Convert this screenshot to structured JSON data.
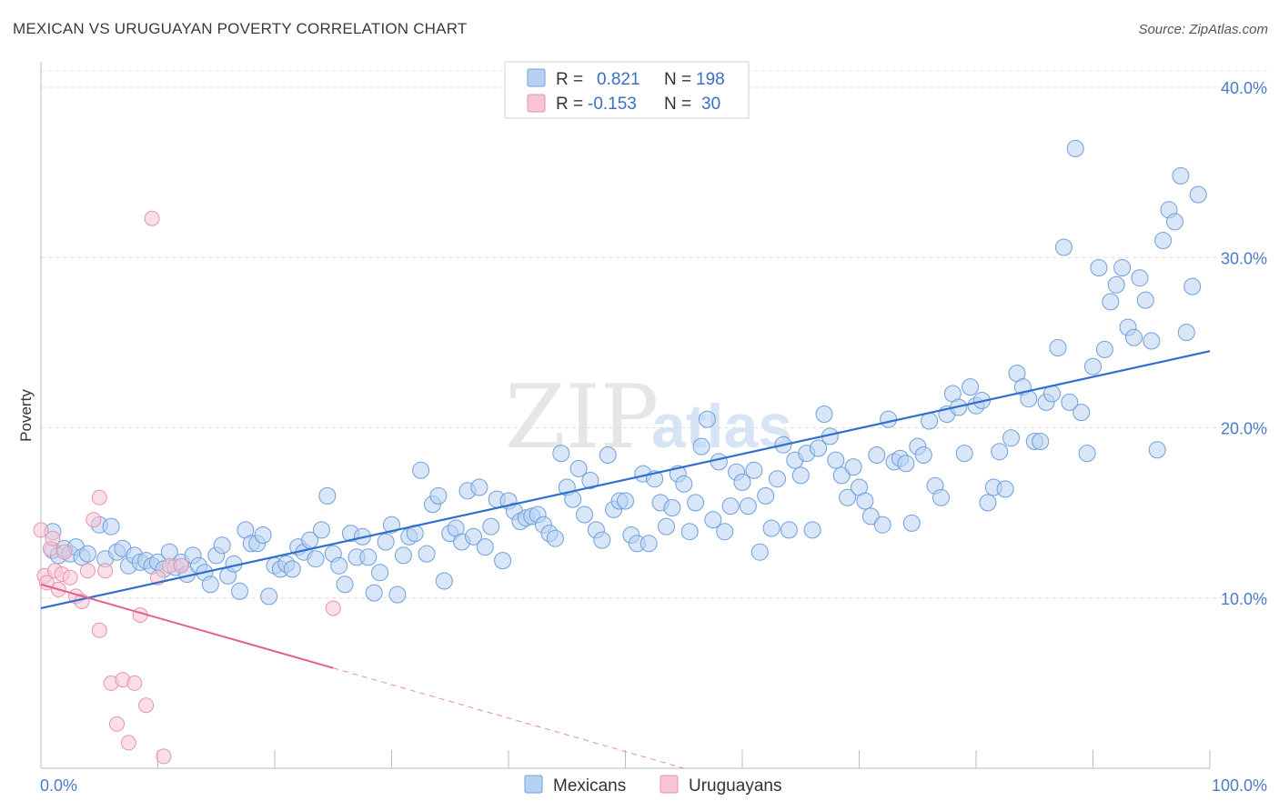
{
  "header": {
    "title": "MEXICAN VS URUGUAYAN POVERTY CORRELATION CHART",
    "source": "Source: ZipAtlas.com"
  },
  "watermark": {
    "zip": "ZIP",
    "atlas": "atlas"
  },
  "legend_box": {
    "rows": [
      {
        "r_label": "R =",
        "r_value": "0.821",
        "n_label": "N =",
        "n_value": "198",
        "color": "#a9c6ef"
      },
      {
        "r_label": "R =",
        "r_value": "-0.153",
        "n_label": "N =",
        "n_value": "30",
        "color": "#f4b8cb"
      }
    ]
  },
  "bottom_legend": [
    {
      "label": "Mexicans",
      "color": "#a9c6ef"
    },
    {
      "label": "Uruguayans",
      "color": "#f4b8cb"
    }
  ],
  "chart_data": {
    "type": "scatter",
    "xlabel": "",
    "ylabel": "Poverty",
    "xlim": [
      0,
      100
    ],
    "ylim": [
      0,
      40
    ],
    "x_tick_labels": [
      "0.0%",
      "100.0%"
    ],
    "y_ticks": [
      10,
      20,
      30,
      40
    ],
    "y_tick_labels": [
      "10.0%",
      "20.0%",
      "30.0%",
      "40.0%"
    ],
    "grid": "horizontal dashed",
    "legend_position": "top-center",
    "series": [
      {
        "name": "Mexicans",
        "color": "#6f9fdc",
        "fill": "#b8d1f3",
        "trend": {
          "x0": 0,
          "y0": 9.4,
          "x1": 100,
          "y1": 24.5,
          "solid_until": 100
        },
        "points": [
          [
            1,
            13.9
          ],
          [
            1,
            12.8
          ],
          [
            1.5,
            12.5
          ],
          [
            2,
            12.9
          ],
          [
            2.5,
            12.6
          ],
          [
            3,
            13
          ],
          [
            3.5,
            12.4
          ],
          [
            4,
            12.6
          ],
          [
            5,
            14.3
          ],
          [
            5.5,
            12.3
          ],
          [
            6,
            14.2
          ],
          [
            6.5,
            12.7
          ],
          [
            7,
            12.9
          ],
          [
            7.5,
            11.9
          ],
          [
            8,
            12.5
          ],
          [
            8.5,
            12.1
          ],
          [
            9,
            12.2
          ],
          [
            9.5,
            11.9
          ],
          [
            10,
            12.1
          ],
          [
            10.5,
            11.7
          ],
          [
            11,
            12.7
          ],
          [
            11.5,
            11.8
          ],
          [
            12,
            12.1
          ],
          [
            12.5,
            11.4
          ],
          [
            13,
            12.5
          ],
          [
            13.5,
            11.9
          ],
          [
            14,
            11.5
          ],
          [
            14.5,
            10.8
          ],
          [
            15,
            12.5
          ],
          [
            15.5,
            13.1
          ],
          [
            16,
            11.3
          ],
          [
            16.5,
            12
          ],
          [
            17,
            10.4
          ],
          [
            17.5,
            14
          ],
          [
            18,
            13.2
          ],
          [
            18.5,
            13.2
          ],
          [
            19,
            13.7
          ],
          [
            19.5,
            10.1
          ],
          [
            20,
            11.9
          ],
          [
            20.5,
            11.7
          ],
          [
            21,
            12
          ],
          [
            21.5,
            11.7
          ],
          [
            22,
            13
          ],
          [
            22.5,
            12.7
          ],
          [
            23,
            13.4
          ],
          [
            23.5,
            12.3
          ],
          [
            24,
            14
          ],
          [
            24.5,
            16
          ],
          [
            25,
            12.6
          ],
          [
            25.5,
            11.9
          ],
          [
            26,
            10.8
          ],
          [
            26.5,
            13.8
          ],
          [
            27,
            12.4
          ],
          [
            27.5,
            13.6
          ],
          [
            28,
            12.4
          ],
          [
            28.5,
            10.3
          ],
          [
            29,
            11.5
          ],
          [
            29.5,
            13.3
          ],
          [
            30,
            14.3
          ],
          [
            30.5,
            10.2
          ],
          [
            31,
            12.5
          ],
          [
            31.5,
            13.6
          ],
          [
            32,
            13.8
          ],
          [
            32.5,
            17.5
          ],
          [
            33,
            12.6
          ],
          [
            33.5,
            15.5
          ],
          [
            34,
            16
          ],
          [
            34.5,
            11
          ],
          [
            35,
            13.8
          ],
          [
            35.5,
            14.1
          ],
          [
            36,
            13.3
          ],
          [
            36.5,
            16.3
          ],
          [
            37,
            13.6
          ],
          [
            37.5,
            16.5
          ],
          [
            38,
            13
          ],
          [
            38.5,
            14.2
          ],
          [
            39,
            15.8
          ],
          [
            39.5,
            12.2
          ],
          [
            40,
            15.7
          ],
          [
            40.5,
            15.1
          ],
          [
            41,
            14.5
          ],
          [
            41.5,
            14.7
          ],
          [
            42,
            14.8
          ],
          [
            42.5,
            14.9
          ],
          [
            43,
            14.3
          ],
          [
            43.5,
            13.8
          ],
          [
            44,
            13.5
          ],
          [
            44.5,
            18.5
          ],
          [
            45,
            16.5
          ],
          [
            45.5,
            15.8
          ],
          [
            46,
            17.6
          ],
          [
            46.5,
            14.9
          ],
          [
            47,
            16.9
          ],
          [
            47.5,
            14
          ],
          [
            48,
            13.4
          ],
          [
            48.5,
            18.4
          ],
          [
            49,
            15.2
          ],
          [
            49.5,
            15.7
          ],
          [
            50,
            15.7
          ],
          [
            50.5,
            13.7
          ],
          [
            51,
            13.2
          ],
          [
            51.5,
            17.3
          ],
          [
            52,
            13.2
          ],
          [
            52.5,
            17
          ],
          [
            53,
            15.6
          ],
          [
            53.5,
            14.2
          ],
          [
            54,
            15.3
          ],
          [
            54.5,
            17.3
          ],
          [
            55,
            16.7
          ],
          [
            55.5,
            13.9
          ],
          [
            56,
            15.6
          ],
          [
            56.5,
            18.9
          ],
          [
            57,
            20.5
          ],
          [
            57.5,
            14.6
          ],
          [
            58,
            18
          ],
          [
            58.5,
            13.9
          ],
          [
            59,
            15.4
          ],
          [
            59.5,
            17.4
          ],
          [
            60,
            16.8
          ],
          [
            60.5,
            15.4
          ],
          [
            61,
            17.5
          ],
          [
            61.5,
            12.7
          ],
          [
            62,
            16
          ],
          [
            62.5,
            14.1
          ],
          [
            63,
            17
          ],
          [
            63.5,
            19
          ],
          [
            64,
            14
          ],
          [
            64.5,
            18.1
          ],
          [
            65,
            17.2
          ],
          [
            65.5,
            18.5
          ],
          [
            66,
            14
          ],
          [
            66.5,
            18.8
          ],
          [
            67,
            20.8
          ],
          [
            67.5,
            19.5
          ],
          [
            68,
            18.1
          ],
          [
            68.5,
            17.2
          ],
          [
            69,
            15.9
          ],
          [
            69.5,
            17.7
          ],
          [
            70,
            16.5
          ],
          [
            70.5,
            15.7
          ],
          [
            71,
            14.8
          ],
          [
            71.5,
            18.4
          ],
          [
            72,
            14.3
          ],
          [
            72.5,
            20.5
          ],
          [
            73,
            18
          ],
          [
            73.5,
            18.2
          ],
          [
            74,
            17.9
          ],
          [
            74.5,
            14.4
          ],
          [
            75,
            18.9
          ],
          [
            75.5,
            18.4
          ],
          [
            76,
            20.4
          ],
          [
            76.5,
            16.6
          ],
          [
            77,
            15.9
          ],
          [
            77.5,
            20.8
          ],
          [
            78,
            22
          ],
          [
            78.5,
            21.2
          ],
          [
            79,
            18.5
          ],
          [
            79.5,
            22.4
          ],
          [
            80,
            21.3
          ],
          [
            80.5,
            21.6
          ],
          [
            81,
            15.6
          ],
          [
            81.5,
            16.5
          ],
          [
            82,
            18.6
          ],
          [
            82.5,
            16.4
          ],
          [
            83,
            19.4
          ],
          [
            83.5,
            23.2
          ],
          [
            84,
            22.4
          ],
          [
            84.5,
            21.7
          ],
          [
            85,
            19.2
          ],
          [
            85.5,
            19.2
          ],
          [
            86,
            21.5
          ],
          [
            86.5,
            22
          ],
          [
            87,
            24.7
          ],
          [
            87.5,
            30.6
          ],
          [
            88,
            21.5
          ],
          [
            88.5,
            36.4
          ],
          [
            89,
            20.9
          ],
          [
            89.5,
            18.5
          ],
          [
            90,
            23.6
          ],
          [
            90.5,
            29.4
          ],
          [
            91,
            24.6
          ],
          [
            91.5,
            27.4
          ],
          [
            92,
            28.4
          ],
          [
            92.5,
            29.4
          ],
          [
            93,
            25.9
          ],
          [
            93.5,
            25.3
          ],
          [
            94,
            28.8
          ],
          [
            94.5,
            27.5
          ],
          [
            95,
            25.1
          ],
          [
            95.5,
            18.7
          ],
          [
            96,
            31
          ],
          [
            96.5,
            32.8
          ],
          [
            97,
            32.1
          ],
          [
            97.5,
            34.8
          ],
          [
            98,
            25.6
          ],
          [
            98.5,
            28.3
          ],
          [
            99,
            33.7
          ]
        ]
      },
      {
        "name": "Uruguayans",
        "color": "#e892b0",
        "fill": "#f7c4d4",
        "trend": {
          "x0": 0,
          "y0": 10.8,
          "x1": 55,
          "y1": 0,
          "solid_until": 25
        },
        "points": [
          [
            0,
            14
          ],
          [
            0.3,
            11.3
          ],
          [
            0.5,
            10.9
          ],
          [
            0.8,
            12.9
          ],
          [
            1,
            13.5
          ],
          [
            1.2,
            11.6
          ],
          [
            1.5,
            10.5
          ],
          [
            1.8,
            11.4
          ],
          [
            2,
            12.7
          ],
          [
            2.5,
            11.2
          ],
          [
            3,
            10.1
          ],
          [
            3.5,
            9.8
          ],
          [
            4,
            11.6
          ],
          [
            4.5,
            14.6
          ],
          [
            5,
            15.9
          ],
          [
            5,
            8.1
          ],
          [
            5.5,
            11.6
          ],
          [
            6,
            5
          ],
          [
            6.5,
            2.6
          ],
          [
            7,
            5.2
          ],
          [
            7.5,
            1.5
          ],
          [
            8,
            5
          ],
          [
            8.5,
            9
          ],
          [
            9,
            3.7
          ],
          [
            9.5,
            32.3
          ],
          [
            10,
            11.2
          ],
          [
            10.5,
            0.7
          ],
          [
            11,
            11.9
          ],
          [
            12,
            11.9
          ],
          [
            25,
            9.4
          ]
        ]
      }
    ]
  }
}
